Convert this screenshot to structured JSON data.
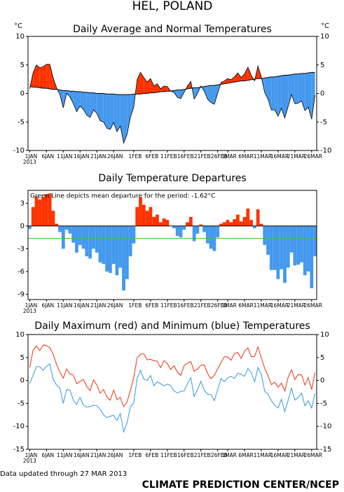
{
  "title": "HEL, POLAND",
  "footer_left": "Data updated through 27 MAR 2013",
  "footer_right": "CLIMATE PREDICTION CENTER/NCEP",
  "chart_data": [
    {
      "type": "area",
      "title": "Daily Average and Normal Temperatures",
      "y_label": "°C",
      "categories": [
        "1JAN",
        null,
        null,
        null,
        null,
        "6JAN",
        null,
        null,
        null,
        null,
        "11JAN",
        null,
        null,
        null,
        null,
        "16JAN",
        null,
        null,
        null,
        null,
        "21JAN",
        null,
        null,
        null,
        null,
        "26JAN",
        null,
        null,
        null,
        null,
        null,
        "1FEB",
        null,
        null,
        null,
        null,
        "6FEB",
        null,
        null,
        null,
        null,
        "11FEB",
        null,
        null,
        null,
        null,
        "16FEB",
        null,
        null,
        null,
        null,
        "21FEB",
        null,
        null,
        null,
        null,
        "26FEB",
        null,
        null,
        "1MAR",
        null,
        null,
        null,
        null,
        "6MAR",
        null,
        null,
        null,
        null,
        "11MAR",
        null,
        null,
        null,
        null,
        "16MAR",
        null,
        null,
        null,
        null,
        "21MAR",
        null,
        null,
        null,
        null,
        "26MAR",
        null
      ],
      "year": "2013",
      "values": [
        0.8,
        3.6,
        5.0,
        4.5,
        4.7,
        5.1,
        5.1,
        2.7,
        1.0,
        -0.2,
        -2.5,
        0.0,
        -0.6,
        -1.8,
        -3.2,
        -2.2,
        -2.8,
        -3.8,
        -4.2,
        -2.9,
        -3.5,
        -4.8,
        -5.0,
        -6.1,
        -6.3,
        -5.1,
        -6.7,
        -5.7,
        -8.7,
        -7.2,
        -4.2,
        -2.4,
        2.4,
        3.7,
        2.8,
        2.0,
        2.6,
        1.3,
        1.7,
        0.8,
        1.3,
        1.2,
        0.4,
        0.2,
        -0.7,
        -0.9,
        0.2,
        1.3,
        2.1,
        -1.0,
        0.0,
        1.3,
        0.4,
        -1.0,
        -1.6,
        -1.9,
        0.0,
        1.9,
        2.2,
        2.6,
        2.4,
        2.9,
        3.6,
        2.8,
        3.4,
        4.6,
        3.2,
        2.2,
        4.8,
        2.9,
        0.2,
        -1.0,
        -2.9,
        -2.9,
        -4.0,
        -2.6,
        -4.3,
        -2.3,
        -0.2,
        -1.8,
        -1.7,
        -1.3,
        -3.0,
        -2.4,
        -4.5,
        -0.3
      ],
      "normal": [
        1.2,
        1.1,
        1.1,
        1.0,
        0.9,
        0.9,
        0.8,
        0.7,
        0.7,
        0.6,
        0.5,
        0.5,
        0.4,
        0.4,
        0.3,
        0.3,
        0.2,
        0.2,
        0.1,
        0.1,
        0.0,
        0.0,
        0.0,
        -0.1,
        -0.1,
        -0.1,
        -0.2,
        -0.2,
        -0.2,
        -0.2,
        -0.2,
        -0.1,
        -0.1,
        -0.1,
        0.0,
        0.0,
        0.1,
        0.1,
        0.2,
        0.3,
        0.3,
        0.4,
        0.4,
        0.5,
        0.6,
        0.6,
        0.7,
        0.8,
        0.9,
        1.0,
        1.0,
        1.1,
        1.2,
        1.3,
        1.4,
        1.4,
        1.5,
        1.6,
        1.7,
        1.8,
        1.9,
        2.0,
        2.1,
        2.2,
        2.2,
        2.3,
        2.4,
        2.5,
        2.6,
        2.6,
        2.7,
        2.8,
        2.9,
        2.9,
        3.0,
        3.1,
        3.2,
        3.2,
        3.3,
        3.4,
        3.4,
        3.5,
        3.5,
        3.6,
        3.7,
        3.7
      ],
      "above_color": "#ff3300",
      "below_color": "#4499ee",
      "ylim": [
        -10,
        10
      ],
      "yticks": [
        -10,
        -5,
        0,
        5,
        10
      ],
      "right_axis": true
    },
    {
      "type": "bar",
      "title": "Daily Temperature Departures",
      "annotation": "Green Line depicts mean departure for the period: -1.62°C",
      "categories": [
        "1JAN",
        null,
        null,
        null,
        null,
        "6JAN",
        null,
        null,
        null,
        null,
        "11JAN",
        null,
        null,
        null,
        null,
        "16JAN",
        null,
        null,
        null,
        null,
        "21JAN",
        null,
        null,
        null,
        null,
        "26JAN",
        null,
        null,
        null,
        null,
        null,
        "1FEB",
        null,
        null,
        null,
        null,
        "6FEB",
        null,
        null,
        null,
        null,
        "11FEB",
        null,
        null,
        null,
        null,
        "16FEB",
        null,
        null,
        null,
        null,
        "21FEB",
        null,
        null,
        null,
        null,
        "26FEB",
        null,
        null,
        "1MAR",
        null,
        null,
        null,
        null,
        "6MAR",
        null,
        null,
        null,
        null,
        "11MAR",
        null,
        null,
        null,
        null,
        "16MAR",
        null,
        null,
        null,
        null,
        "21MAR",
        null,
        null,
        null,
        null,
        "26MAR",
        null
      ],
      "year": "2013",
      "values": [
        -0.4,
        2.5,
        3.9,
        3.5,
        3.8,
        4.2,
        4.3,
        2.0,
        0.3,
        -0.8,
        -3.0,
        -0.5,
        -1.0,
        -2.2,
        -3.5,
        -2.5,
        -3.0,
        -4.0,
        -4.3,
        -3.0,
        -3.5,
        -4.8,
        -5.0,
        -6.0,
        -6.2,
        -5.0,
        -6.5,
        -5.5,
        -8.5,
        -7.0,
        -4.0,
        -2.3,
        2.5,
        3.8,
        2.8,
        2.0,
        2.5,
        1.2,
        1.5,
        0.5,
        1.0,
        0.8,
        0.0,
        -0.3,
        -1.3,
        -1.5,
        -0.5,
        0.5,
        1.2,
        -2.0,
        -1.0,
        0.2,
        -0.8,
        -2.3,
        -3.0,
        -3.3,
        -1.5,
        0.3,
        0.5,
        0.8,
        0.5,
        0.9,
        1.5,
        0.6,
        1.2,
        2.3,
        0.8,
        -0.3,
        2.2,
        0.3,
        -2.5,
        -3.8,
        -5.8,
        -5.8,
        -7.0,
        -5.7,
        -7.5,
        -5.5,
        -3.5,
        -5.2,
        -5.1,
        -4.8,
        -6.5,
        -6.0,
        -8.2,
        -4.0
      ],
      "mean_departure": -1.62,
      "mean_color": "#33cc33",
      "above_color": "#ff3300",
      "below_color": "#4499ee",
      "ylim": [
        -9.7,
        4.7
      ],
      "yticks": [
        -9,
        -6,
        -3,
        0,
        3
      ],
      "right_axis": false
    },
    {
      "type": "line",
      "title": "Daily Maximum (red) and Minimum (blue) Temperatures",
      "categories": [
        "1JAN",
        null,
        null,
        null,
        null,
        "6JAN",
        null,
        null,
        null,
        null,
        "11JAN",
        null,
        null,
        null,
        null,
        "16JAN",
        null,
        null,
        null,
        null,
        "21JAN",
        null,
        null,
        null,
        null,
        "26JAN",
        null,
        null,
        null,
        null,
        null,
        "1FEB",
        null,
        null,
        null,
        null,
        "6FEB",
        null,
        null,
        null,
        null,
        "11FEB",
        null,
        null,
        null,
        null,
        "16FEB",
        null,
        null,
        null,
        null,
        "21FEB",
        null,
        null,
        null,
        null,
        "26FEB",
        null,
        null,
        "1MAR",
        null,
        null,
        null,
        null,
        "6MAR",
        null,
        null,
        null,
        null,
        "11MAR",
        null,
        null,
        null,
        null,
        "16MAR",
        null,
        null,
        null,
        null,
        "21MAR",
        null,
        null,
        null,
        null,
        "26MAR",
        null
      ],
      "year": "2013",
      "series": [
        {
          "color": "#ee3311",
          "values": [
            2.8,
            6.6,
            7.5,
            6.5,
            7.7,
            7.6,
            7.1,
            5.7,
            3.5,
            1.8,
            0.5,
            2.5,
            1.4,
            1.2,
            -0.7,
            -0.2,
            0.2,
            -1.3,
            -2.2,
            0.1,
            -1.0,
            -2.8,
            -2.0,
            -3.6,
            -4.3,
            -2.1,
            -4.2,
            -3.7,
            -5.7,
            -4.7,
            -2.2,
            0.6,
            4.9,
            5.7,
            5.8,
            4.5,
            4.6,
            4.3,
            4.2,
            2.8,
            4.3,
            3.7,
            2.4,
            3.2,
            1.8,
            1.1,
            3.2,
            3.8,
            4.1,
            2.0,
            2.5,
            3.3,
            3.4,
            1.5,
            0.4,
            1.1,
            2.5,
            3.9,
            5.2,
            5.1,
            4.4,
            5.9,
            6.1,
            4.8,
            6.4,
            7.1,
            5.2,
            5.2,
            7.3,
            4.9,
            2.7,
            1.0,
            -0.9,
            -0.4,
            -1.5,
            -0.6,
            -2.3,
            0.7,
            2.3,
            0.2,
            1.3,
            1.2,
            -1.0,
            0.6,
            -2.0,
            1.7
          ]
        },
        {
          "color": "#3399dd",
          "values": [
            -0.7,
            1.1,
            3.0,
            3.0,
            2.2,
            3.1,
            3.6,
            0.2,
            -1.0,
            -1.7,
            -5.0,
            -2.0,
            -2.1,
            -4.3,
            -5.2,
            -3.7,
            -5.3,
            -5.8,
            -5.7,
            -5.4,
            -5.5,
            -6.3,
            -7.5,
            -8.1,
            -7.8,
            -7.6,
            -8.7,
            -7.2,
            -11.2,
            -9.2,
            -5.7,
            -4.9,
            0.4,
            2.2,
            0.3,
            0.0,
            1.1,
            -1.2,
            -0.3,
            -0.7,
            -1.2,
            -0.8,
            -1.1,
            -2.3,
            -2.7,
            -2.4,
            -2.3,
            -0.7,
            0.6,
            -3.5,
            -2.0,
            -0.2,
            -2.1,
            -3.0,
            -3.1,
            -4.4,
            -2.0,
            0.4,
            -0.3,
            0.6,
            0.9,
            0.4,
            1.6,
            1.3,
            0.9,
            2.6,
            1.7,
            -0.3,
            2.8,
            1.4,
            -2.3,
            -3.0,
            -4.4,
            -5.4,
            -6.0,
            -4.1,
            -6.8,
            -4.3,
            -1.7,
            -4.3,
            -3.7,
            -2.8,
            -5.5,
            -4.4,
            -6.0,
            -2.8
          ]
        }
      ],
      "ylim": [
        -15,
        10
      ],
      "yticks": [
        -15,
        -10,
        -5,
        0,
        5,
        10
      ],
      "right_axis": true
    }
  ]
}
